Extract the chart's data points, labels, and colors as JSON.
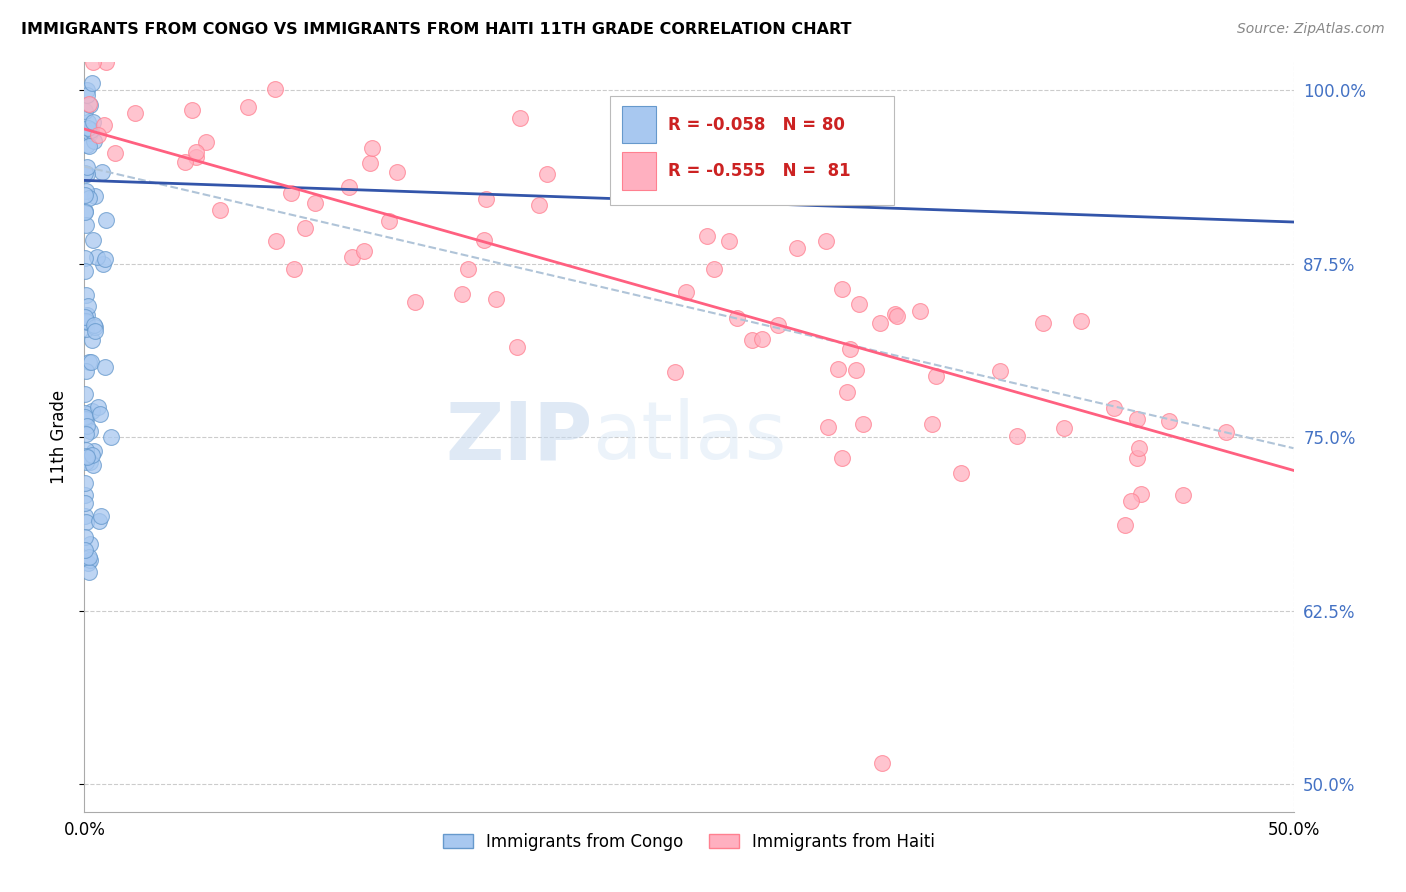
{
  "title": "IMMIGRANTS FROM CONGO VS IMMIGRANTS FROM HAITI 11TH GRADE CORRELATION CHART",
  "source": "Source: ZipAtlas.com",
  "ylabel": "11th Grade",
  "xlim": [
    0.0,
    0.5
  ],
  "ylim": [
    0.48,
    1.02
  ],
  "xtick_positions": [
    0.0,
    0.1,
    0.2,
    0.3,
    0.4,
    0.5
  ],
  "xtick_labels": [
    "0.0%",
    "",
    "",
    "",
    "",
    "50.0%"
  ],
  "ytick_positions": [
    0.5,
    0.625,
    0.75,
    0.875,
    1.0
  ],
  "ytick_labels": [
    "50.0%",
    "62.5%",
    "75.0%",
    "87.5%",
    "100.0%"
  ],
  "congo_color": "#A8C8F0",
  "congo_edge_color": "#6699CC",
  "haiti_color": "#FFB0C0",
  "haiti_edge_color": "#FF8090",
  "trend_congo_color": "#3355AA",
  "trend_haiti_color": "#FF6080",
  "trend_combined_color": "#B0C4D8",
  "right_axis_color": "#4472C4",
  "background_color": "#FFFFFF",
  "grid_color": "#CCCCCC",
  "watermark_zip": "ZIP",
  "watermark_atlas": "atlas",
  "legend_congo_R": "-0.058",
  "legend_congo_N": "80",
  "legend_haiti_R": "-0.555",
  "legend_haiti_N": "81"
}
